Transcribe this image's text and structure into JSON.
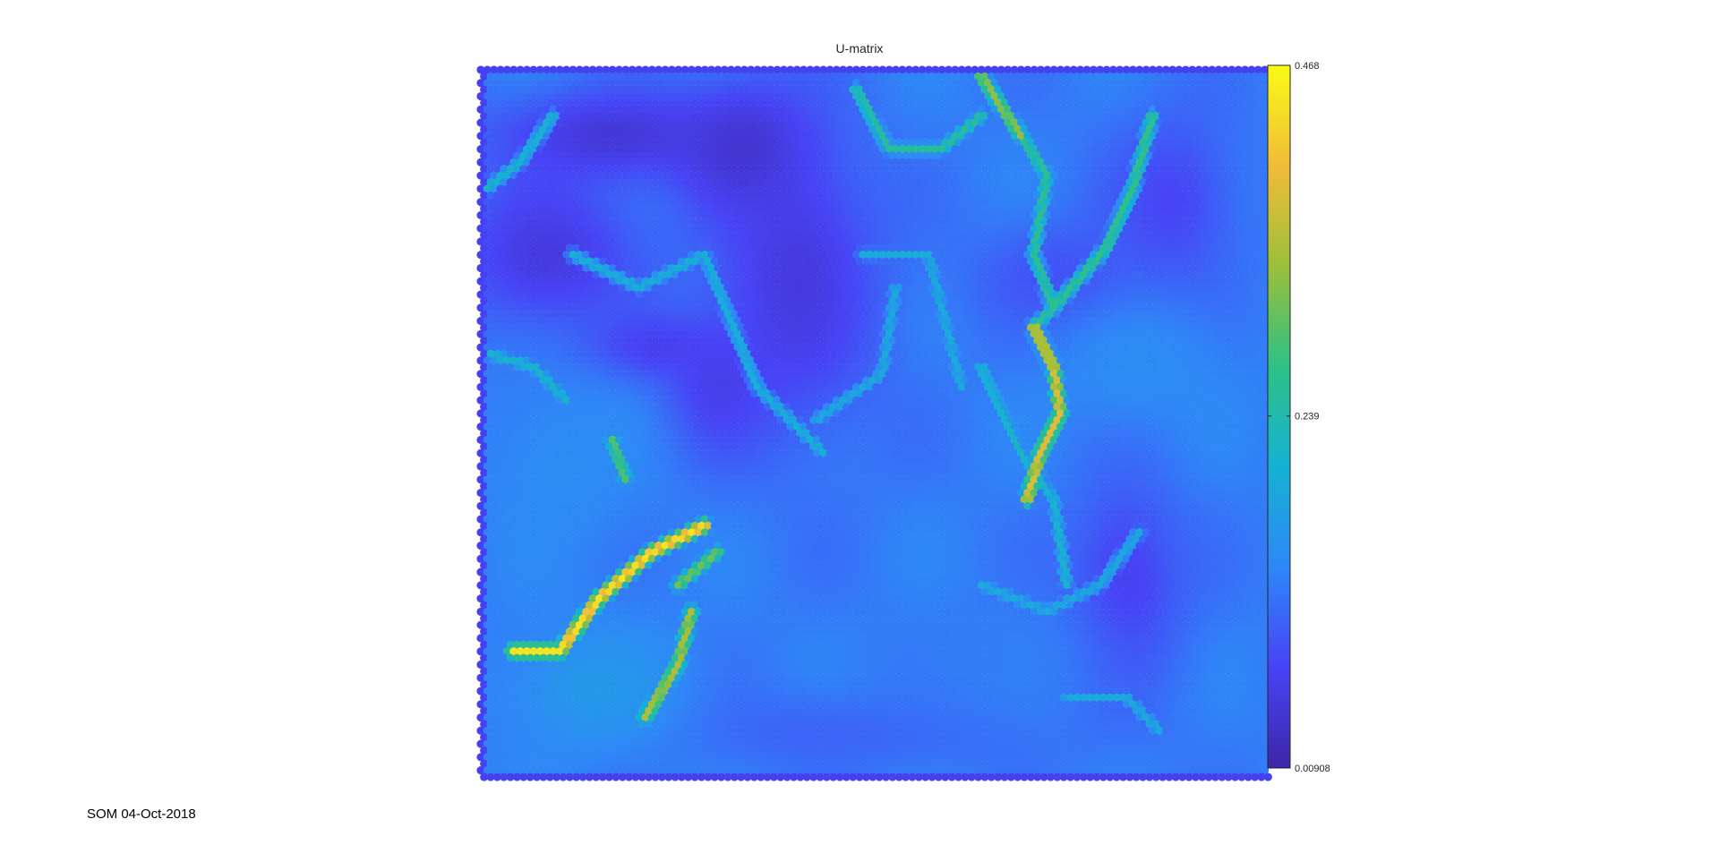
{
  "footer_text": "SOM 04-Oct-2018",
  "chart_data": {
    "type": "heatmap",
    "subtype": "hexagonal-u-matrix",
    "title": "U-matrix",
    "xlabel": "",
    "ylabel": "",
    "grid": false,
    "colormap": "parula",
    "colormap_stops": [
      "#3E26A8",
      "#4743F6",
      "#2E87F7",
      "#15B1D4",
      "#2EC185",
      "#9CBF3A",
      "#F1BC38",
      "#F9FB15"
    ],
    "colorbar": {
      "min": 0.00908,
      "max": 0.468,
      "ticks": [
        0.00908,
        0.239,
        0.468
      ],
      "tick_labels": [
        "0.00908",
        "0.239",
        "0.468"
      ],
      "placement": "right"
    },
    "grid_units": {
      "cols": 120,
      "rows": 107,
      "approximate": true
    },
    "ridges": [
      {
        "points": [
          [
            5,
            88
          ],
          [
            12,
            88
          ],
          [
            18,
            80
          ],
          [
            26,
            73
          ],
          [
            34,
            69
          ]
        ],
        "value": 0.46
      },
      {
        "points": [
          [
            30,
            78
          ],
          [
            36,
            73
          ]
        ],
        "value": 0.32
      },
      {
        "points": [
          [
            25,
            98
          ],
          [
            30,
            90
          ],
          [
            32,
            82
          ]
        ],
        "value": 0.36
      },
      {
        "points": [
          [
            20,
            56
          ],
          [
            22,
            62
          ]
        ],
        "value": 0.3
      },
      {
        "points": [
          [
            84,
            39
          ],
          [
            87,
            45
          ],
          [
            88,
            52
          ],
          [
            85,
            58
          ],
          [
            83,
            65
          ]
        ],
        "value": 0.4
      },
      {
        "points": [
          [
            76,
            1
          ],
          [
            82,
            10
          ]
        ],
        "value": 0.34
      },
      {
        "points": [
          [
            82,
            10
          ],
          [
            86,
            16
          ],
          [
            84,
            28
          ],
          [
            87,
            36
          ],
          [
            84,
            39
          ]
        ],
        "value": 0.27
      },
      {
        "points": [
          [
            87,
            36
          ],
          [
            95,
            27
          ],
          [
            99,
            18
          ],
          [
            102,
            7
          ]
        ],
        "value": 0.28
      },
      {
        "points": [
          [
            57,
            3
          ],
          [
            62,
            12
          ],
          [
            70,
            12
          ],
          [
            76,
            7
          ]
        ],
        "value": 0.26
      },
      {
        "points": [
          [
            1,
            18
          ],
          [
            6,
            14
          ],
          [
            11,
            7
          ]
        ],
        "value": 0.22
      },
      {
        "points": [
          [
            1,
            43
          ],
          [
            8,
            45
          ],
          [
            13,
            50
          ]
        ],
        "value": 0.22
      },
      {
        "points": [
          [
            14,
            28
          ],
          [
            24,
            33
          ],
          [
            34,
            28
          ],
          [
            42,
            48
          ],
          [
            52,
            58
          ]
        ],
        "value": 0.21
      },
      {
        "points": [
          [
            51,
            53
          ],
          [
            61,
            46
          ],
          [
            63,
            33
          ]
        ],
        "value": 0.2
      },
      {
        "points": [
          [
            58,
            28
          ],
          [
            68,
            28
          ],
          [
            73,
            48
          ]
        ],
        "value": 0.2
      },
      {
        "points": [
          [
            76,
            45
          ],
          [
            82,
            58
          ],
          [
            87,
            65
          ],
          [
            89,
            78
          ]
        ],
        "value": 0.22
      },
      {
        "points": [
          [
            76,
            78
          ],
          [
            86,
            82
          ],
          [
            94,
            78
          ],
          [
            100,
            70
          ]
        ],
        "value": 0.2
      },
      {
        "points": [
          [
            89,
            95
          ],
          [
            98,
            95
          ],
          [
            103,
            100
          ]
        ],
        "value": 0.2
      }
    ],
    "blobs": [
      {
        "center": [
          20,
          10
        ],
        "radius": [
          18,
          7
        ],
        "value": 0.04
      },
      {
        "center": [
          10,
          28
        ],
        "radius": [
          14,
          12
        ],
        "value": 0.045
      },
      {
        "center": [
          40,
          12
        ],
        "radius": [
          10,
          10
        ],
        "value": 0.035
      },
      {
        "center": [
          48,
          32
        ],
        "radius": [
          13,
          23
        ],
        "value": 0.045
      },
      {
        "center": [
          26,
          42
        ],
        "radius": [
          10,
          5
        ],
        "value": 0.06
      },
      {
        "center": [
          36,
          48
        ],
        "radius": [
          8,
          10
        ],
        "value": 0.06
      },
      {
        "center": [
          98,
          78
        ],
        "radius": [
          9,
          16
        ],
        "value": 0.06
      },
      {
        "center": [
          88,
          32
        ],
        "radius": [
          13,
          9
        ],
        "value": 0.08
      },
      {
        "center": [
          55,
          100
        ],
        "radius": [
          30,
          6
        ],
        "value": 0.1
      },
      {
        "center": [
          105,
          20
        ],
        "radius": [
          10,
          14
        ],
        "value": 0.07
      },
      {
        "center": [
          17,
          94
        ],
        "radius": [
          14,
          10
        ],
        "value": 0.17
      },
      {
        "center": [
          100,
          45
        ],
        "radius": [
          14,
          10
        ],
        "value": 0.15
      },
      {
        "center": [
          12,
          60
        ],
        "radius": [
          12,
          14
        ],
        "value": 0.15
      },
      {
        "center": [
          75,
          90
        ],
        "radius": [
          20,
          10
        ],
        "value": 0.13
      }
    ]
  }
}
